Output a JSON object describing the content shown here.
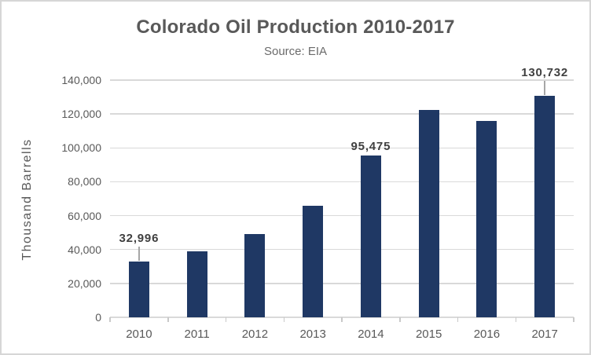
{
  "chart_data": {
    "type": "bar",
    "title": "Colorado Oil Production 2010-2017",
    "subtitle": "Source: EIA",
    "ylabel": "Thousand Barrells",
    "xlabel": "",
    "categories": [
      "2010",
      "2011",
      "2012",
      "2013",
      "2014",
      "2015",
      "2016",
      "2017"
    ],
    "values": [
      32996,
      39000,
      49300,
      66000,
      95475,
      122400,
      115900,
      130732
    ],
    "labeled_values_note": "only 2010, 2014 and 2017 have visible data labels; other values estimated from bar heights",
    "ylim": [
      0,
      140000
    ],
    "ytick_step": 20000,
    "ytick_labels": [
      "0",
      "20,000",
      "40,000",
      "60,000",
      "80,000",
      "100,000",
      "120,000",
      "140,000"
    ],
    "grid": true,
    "legend": "none",
    "data_labels": [
      {
        "category": "2010",
        "text": "32,996",
        "leader_line": true
      },
      {
        "category": "2014",
        "text": "95,475",
        "leader_line": false
      },
      {
        "category": "2017",
        "text": "130,732",
        "leader_line": true
      }
    ],
    "colors": {
      "bar": "#1F3864",
      "gridline": "#D9D9D9",
      "title_text": "#595959",
      "axis_text": "#595959",
      "data_label_text": "#404040",
      "leader_line": "#A6A6A6",
      "frame_border": "#D6D6D6",
      "background": "#FFFFFF"
    }
  }
}
